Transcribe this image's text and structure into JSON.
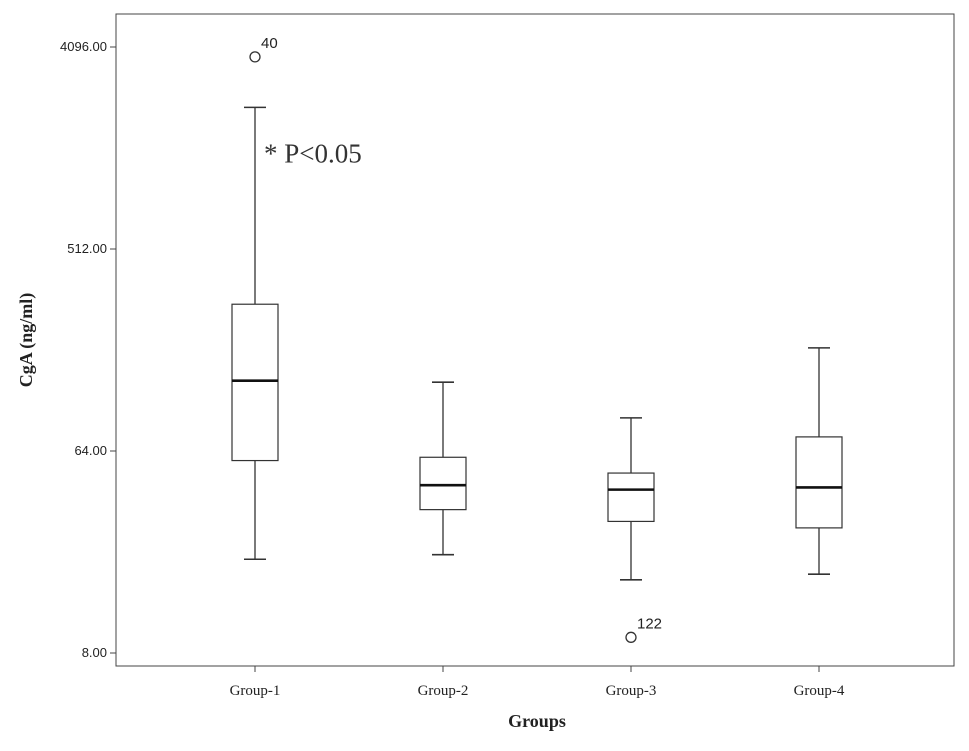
{
  "chart_data": {
    "type": "box",
    "scale": "log2",
    "xlabel": "Groups",
    "ylabel": "CgA (ng/ml)",
    "ylim": [
      6.8,
      4700
    ],
    "yticks": [
      {
        "value": 8,
        "label": "8.00"
      },
      {
        "value": 64,
        "label": "64.00"
      },
      {
        "value": 512,
        "label": "512.00"
      },
      {
        "value": 4096,
        "label": "4096.00"
      }
    ],
    "categories": [
      "Group-1",
      "Group-2",
      "Group-3",
      "Group-4"
    ],
    "boxes": [
      {
        "category": "Group-1",
        "whisker_low": 21,
        "q1": 58,
        "median": 132,
        "q3": 290,
        "whisker_high": 2200
      },
      {
        "category": "Group-2",
        "whisker_low": 22,
        "q1": 35,
        "median": 45,
        "q3": 60,
        "whisker_high": 130
      },
      {
        "category": "Group-3",
        "whisker_low": 17,
        "q1": 31,
        "median": 43,
        "q3": 51,
        "whisker_high": 90
      },
      {
        "category": "Group-4",
        "whisker_low": 18,
        "q1": 29,
        "median": 44,
        "q3": 74,
        "whisker_high": 185
      }
    ],
    "outliers": [
      {
        "category": "Group-1",
        "value": 3700,
        "label": "40"
      },
      {
        "category": "Group-3",
        "value": 9.4,
        "label": "122"
      }
    ],
    "annotations": [
      {
        "text": "* P<0.05",
        "category": "Group-1",
        "value": 1250
      }
    ],
    "colors": {
      "stroke": "#333333",
      "box_fill": "#ffffff",
      "background": "#ffffff"
    }
  }
}
